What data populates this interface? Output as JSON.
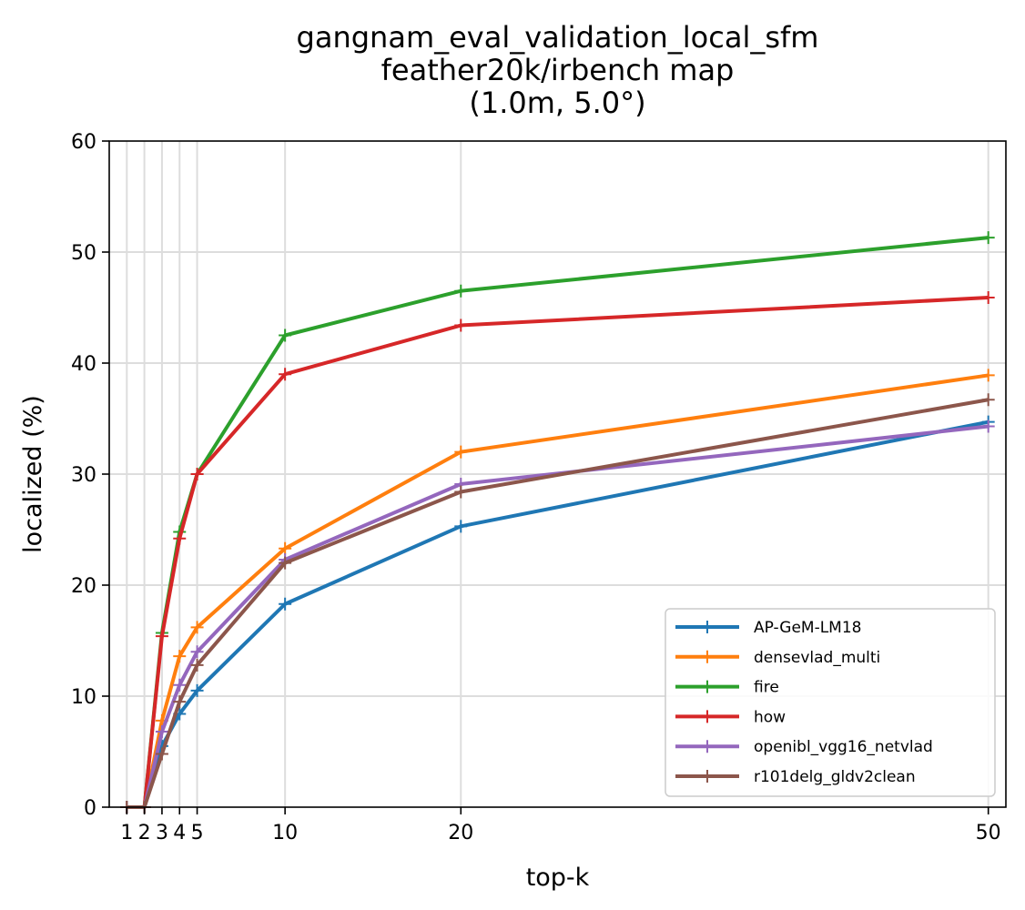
{
  "chart_data": {
    "type": "line",
    "title": "gangnam_eval_validation_local_sfm\nfeather20k/irbench map\n(1.0m, 5.0°)",
    "xlabel": "top-k",
    "ylabel": "localized (%)",
    "xlim": [
      0,
      51
    ],
    "ylim": [
      0,
      60
    ],
    "x_ticks": [
      1,
      2,
      3,
      4,
      5,
      10,
      20,
      50
    ],
    "x_tick_labels": [
      "1",
      "2",
      "3",
      "4",
      "5",
      "10",
      "20",
      "50"
    ],
    "y_ticks": [
      0,
      10,
      20,
      30,
      40,
      50,
      60
    ],
    "y_tick_labels": [
      "0",
      "10",
      "20",
      "30",
      "40",
      "50",
      "60"
    ],
    "grid": true,
    "legend_position": "lower right",
    "x": [
      1,
      2,
      3,
      4,
      5,
      10,
      20,
      50
    ],
    "series": [
      {
        "name": "AP-GeM-LM18",
        "color": "#1f77b4",
        "values": [
          0,
          0,
          5.5,
          8.4,
          10.5,
          18.3,
          25.3,
          34.7
        ]
      },
      {
        "name": "densevlad_multi",
        "color": "#ff7f0e",
        "values": [
          0,
          0,
          7.8,
          13.6,
          16.2,
          23.3,
          32.0,
          38.9
        ]
      },
      {
        "name": "fire",
        "color": "#2ca02c",
        "values": [
          0,
          0,
          15.7,
          24.8,
          30.0,
          42.5,
          46.5,
          51.3
        ]
      },
      {
        "name": "how",
        "color": "#d62728",
        "values": [
          0,
          0,
          15.4,
          24.2,
          30.0,
          39.0,
          43.4,
          45.9
        ]
      },
      {
        "name": "openibl_vgg16_netvlad",
        "color": "#9467bd",
        "values": [
          0,
          0,
          6.8,
          11.0,
          14.0,
          22.3,
          29.1,
          34.3
        ]
      },
      {
        "name": "r101delg_gldv2clean",
        "color": "#8c564b",
        "values": [
          0,
          0,
          4.8,
          9.5,
          12.8,
          22.0,
          28.4,
          36.7
        ]
      }
    ]
  }
}
